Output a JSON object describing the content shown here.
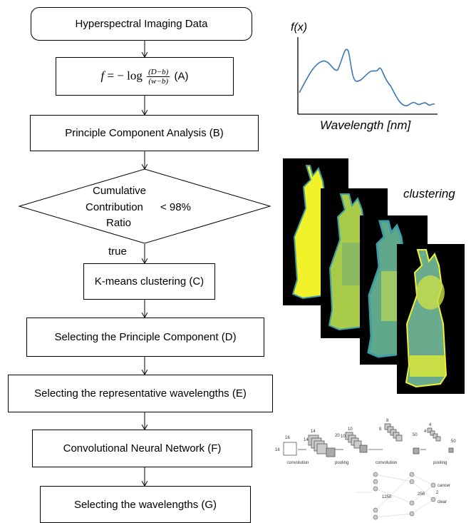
{
  "flow": {
    "start": "Hyperspectral Imaging Data",
    "formula": {
      "lhs": "f",
      "op": "= − log",
      "num": "(D−b)",
      "den": "(w−b)",
      "tag": "(A)"
    },
    "pca": "Principle Component Analysis (B)",
    "decision": {
      "line1": "Cumulative",
      "line2": "Contribution",
      "line3": "Ratio",
      "cond": "< 98%"
    },
    "true_label": "true",
    "kmeans": "K-means clustering (C)",
    "select_pc": "Selecting the Principle Component (D)",
    "select_rep": "Selecting the representative wavelengths (E)",
    "cnn": "Convolutional Neural Network (F)",
    "select_wl": "Selecting the wavelengths (G)"
  },
  "spectrum": {
    "ylabel": "f(x)",
    "xlabel": "Wavelength [nm]"
  },
  "clustering_label": "clustering",
  "cnn_diagram": {
    "sizes": [
      "16",
      "16",
      "14",
      "14",
      "20",
      "10",
      "10",
      "8",
      "8",
      "50",
      "4",
      "4",
      "50"
    ],
    "steps": [
      "convolution",
      "pooling",
      "convolution",
      "pooling"
    ],
    "fc": [
      "1250",
      "256",
      "2"
    ],
    "outputs": [
      "cancer",
      "clear"
    ]
  },
  "colors": {
    "line": "#000000",
    "spectrum": "#3a78b5",
    "yellow": "#f2f22a",
    "teal": "#3d9ca8",
    "green": "#7fb069"
  }
}
